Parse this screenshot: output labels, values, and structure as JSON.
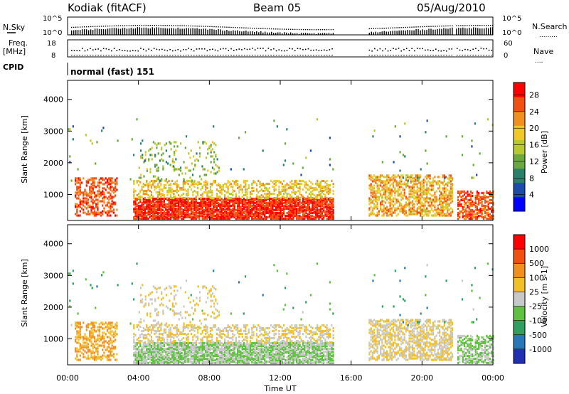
{
  "header": {
    "station": "Kodiak (fitACF)",
    "beam": "Beam 05",
    "date": "05/Aug/2010"
  },
  "panels": {
    "nsky_label": "N.Sky",
    "nsearch_label": "N.Search",
    "freq_label_1": "Freq.",
    "freq_label_2": "[MHz]",
    "nave_label": "Nave",
    "cpid_label": "CPID",
    "cpid_value": "normal (fast) 151",
    "noise_ticks": [
      "10^5",
      "10^0"
    ],
    "freq_ticks": [
      "18",
      "8"
    ],
    "nave_ticks": [
      "60",
      "0"
    ]
  },
  "chart_data": [
    {
      "type": "heatmap",
      "name": "power",
      "xlabel": "",
      "ylabel": "Slant Range [km]",
      "ylim": [
        180,
        4600
      ],
      "y_ticks": [
        1000,
        2000,
        3000,
        4000
      ],
      "colorbar_label": "Power [dB]",
      "colorbar_ticks": [
        4,
        8,
        12,
        16,
        20,
        24,
        28
      ],
      "colorbar_range": [
        0,
        31
      ],
      "colors": [
        "#0000ff",
        "#1c4ca8",
        "#2a8068",
        "#6aa840",
        "#b8c830",
        "#f0c828",
        "#f09020",
        "#f05010",
        "#ff0000"
      ]
    },
    {
      "type": "heatmap",
      "name": "velocity",
      "xlabel": "Time UT",
      "ylabel": "Slant Range [km]",
      "ylim": [
        180,
        4600
      ],
      "y_ticks": [
        1000,
        2000,
        3000,
        4000
      ],
      "x_ticks": [
        "00:00",
        "04:00",
        "08:00",
        "12:00",
        "16:00",
        "20:00",
        "00:00"
      ],
      "colorbar_label": "Velocity [m s-1]",
      "colorbar_ticks": [
        "1000",
        "500",
        "100",
        "25",
        "-25",
        "-100",
        "-500",
        "-1000"
      ],
      "colors": [
        "#2030b0",
        "#2878b8",
        "#30a060",
        "#60c040",
        "#c8c8c8",
        "#f0c028",
        "#f09020",
        "#f05010",
        "#ff0000"
      ]
    }
  ]
}
